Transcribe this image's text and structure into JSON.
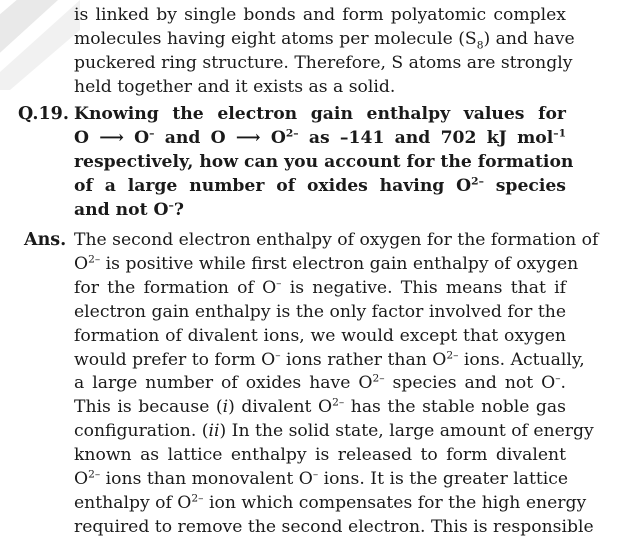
{
  "intro_lines": [
    "is linked by single bonds and form polyatomic complex",
    "molecules having eight atoms per molecule (S8) and have",
    "puckered ring structure. Therefore, S atoms are strongly",
    "held together and it exists as a solid."
  ],
  "question": {
    "label": "Q.19.",
    "lines": [
      "Knowing the electron gain enthalpy values for",
      "O ⟶ O⁻ and O ⟶ O²⁻ as –141 and 702 kJ mol⁻¹",
      "respectively, how can you account for the formation",
      "of a large number of oxides having O²⁻ species",
      "and not O⁻?"
    ]
  },
  "answer": {
    "label": "Ans.",
    "lines": [
      "The second electron enthalpy of oxygen for the formation of",
      "O²⁻ is positive while first electron gain enthalpy of oxygen",
      "for the formation of O⁻ is negative. This means that if",
      "electron gain enthalpy is the only factor involved for the",
      "formation of divalent ions, we would except that oxygen",
      "would prefer to form O⁻ ions rather than O²⁻ ions. Actually,",
      "a large number of oxides have O²⁻ species and not O⁻.",
      "This is because (i) divalent O²⁻ has the stable noble gas",
      "configuration. (ii) In the solid state, large amount of energy",
      "known as lattice enthalpy is released to form divalent",
      "O²⁻ ions than monovalent O⁻ ions. It is the greater lattice",
      "enthalpy of O²⁻ ion which compensates for the high energy",
      "required to remove the second electron. This is responsible"
    ]
  }
}
